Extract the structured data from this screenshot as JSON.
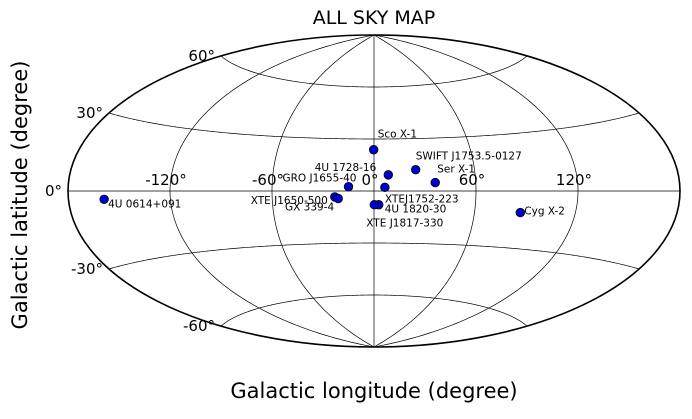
{
  "chart_data": {
    "type": "scatter",
    "projection": "aitoff",
    "title": "ALL SKY MAP",
    "xlabel": "Galactic longitude (degree)",
    "ylabel": "Galactic latitude (degree)",
    "xlim": [
      -180,
      180
    ],
    "ylim": [
      -90,
      90
    ],
    "grid": true,
    "longitude_ticks": [
      -120,
      -60,
      0,
      60,
      120
    ],
    "longitude_tick_labels": [
      "-120°",
      "-60°",
      "0°",
      "60°",
      "120°"
    ],
    "latitude_ticks": [
      -60,
      -30,
      0,
      30,
      60
    ],
    "latitude_tick_labels": [
      "-60°",
      "-30°",
      "0°",
      "30°",
      "60°"
    ],
    "marker_color": "#0000cc",
    "marker_edge": "#000000",
    "points": [
      {
        "label": "Sco X-1",
        "l": -0.2,
        "b": 23.8
      },
      {
        "label": "4U 1728-16",
        "l": 8.5,
        "b": 9.3
      },
      {
        "label": "SWIFT J1753.5-0127",
        "l": 24.9,
        "b": 12.2
      },
      {
        "label": "Ser X-1",
        "l": 36.1,
        "b": 4.8
      },
      {
        "label": "GRO J1655-40",
        "l": -15.0,
        "b": 2.5
      },
      {
        "label": "XTEJ1752-223",
        "l": 6.4,
        "b": 2.1
      },
      {
        "label": "XTE J1650-500",
        "l": -23.1,
        "b": -3.4
      },
      {
        "label": "GX 339-4",
        "l": -21.1,
        "b": -4.3
      },
      {
        "label": "4U 1820-30",
        "l": 2.8,
        "b": -7.9
      },
      {
        "label": "XTE J1817-330",
        "l": 0.2,
        "b": -7.9
      },
      {
        "label": "Cyg X-2",
        "l": 87.3,
        "b": -11.3
      },
      {
        "label": "4U 0614+091",
        "l": -159.0,
        "b": -3.4
      }
    ]
  }
}
